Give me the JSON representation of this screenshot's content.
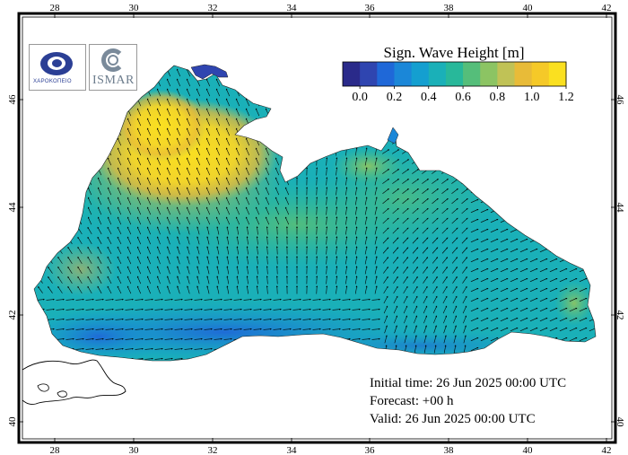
{
  "colorbar": {
    "title": "Sign. Wave Height [m]",
    "labels": [
      "0.0",
      "0.2",
      "0.4",
      "0.6",
      "0.8",
      "1.0",
      "1.2"
    ],
    "colors": [
      "#2a2a8a",
      "#2f45b0",
      "#1f68d8",
      "#1b87d8",
      "#149fd0",
      "#1ab0b8",
      "#28b89a",
      "#55be7a",
      "#8cc463",
      "#c0c256",
      "#e8bb38",
      "#f5c928",
      "#fae020"
    ]
  },
  "axes": {
    "x_ticks": [
      "28",
      "30",
      "32",
      "34",
      "36",
      "38",
      "40",
      "42"
    ],
    "y_ticks": [
      "40",
      "42",
      "44",
      "46"
    ]
  },
  "logos": {
    "left": "ΧΑΡΟΚΟΠΕΙΟ",
    "right": "ISMAR"
  },
  "info": {
    "initial": "Initial time: 26 Jun 2025 00:00 UTC",
    "forecast": "Forecast: +00 h",
    "valid": "Valid: 26 Jun 2025 00:00 UTC"
  }
}
